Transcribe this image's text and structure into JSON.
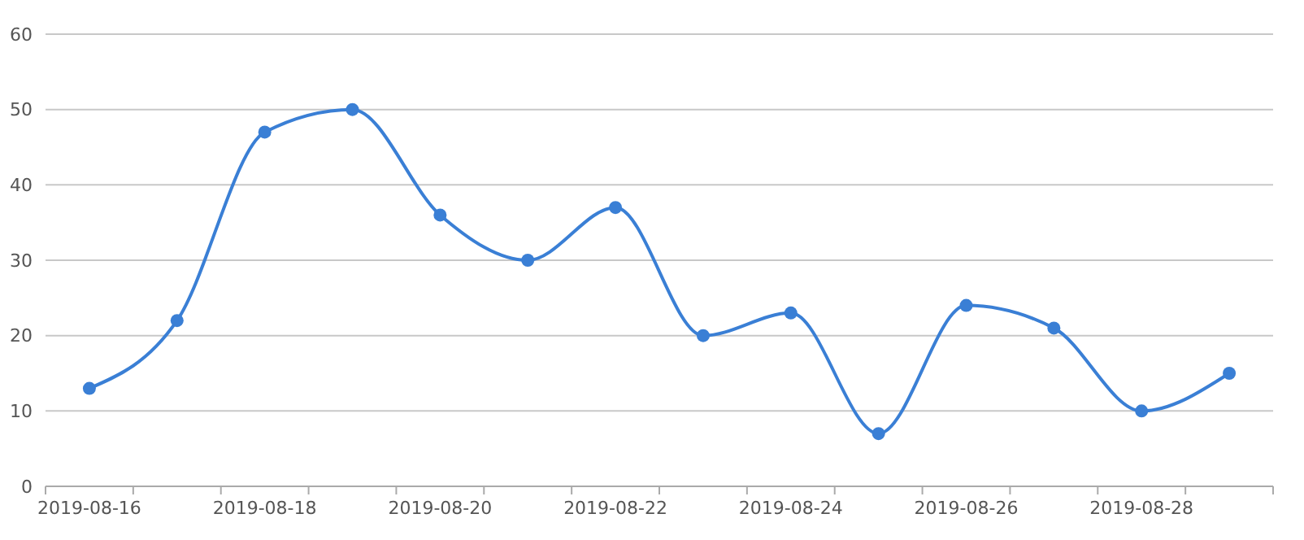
{
  "chart_data": {
    "type": "line",
    "categories": [
      "2019-08-16",
      null,
      "2019-08-18",
      null,
      "2019-08-20",
      null,
      "2019-08-22",
      null,
      "2019-08-24",
      null,
      "2019-08-26",
      null,
      "2019-08-28",
      null
    ],
    "series": [
      {
        "color": "#3a7fd5",
        "values": [
          13,
          22,
          47,
          50,
          36,
          30,
          37,
          20,
          23,
          7,
          24,
          21,
          10,
          15
        ]
      }
    ],
    "ylim": [
      0,
      60
    ],
    "yticks": [
      0,
      10,
      20,
      30,
      40,
      50,
      60
    ],
    "grid": "y",
    "marker": "circle",
    "line_style": "solid"
  }
}
